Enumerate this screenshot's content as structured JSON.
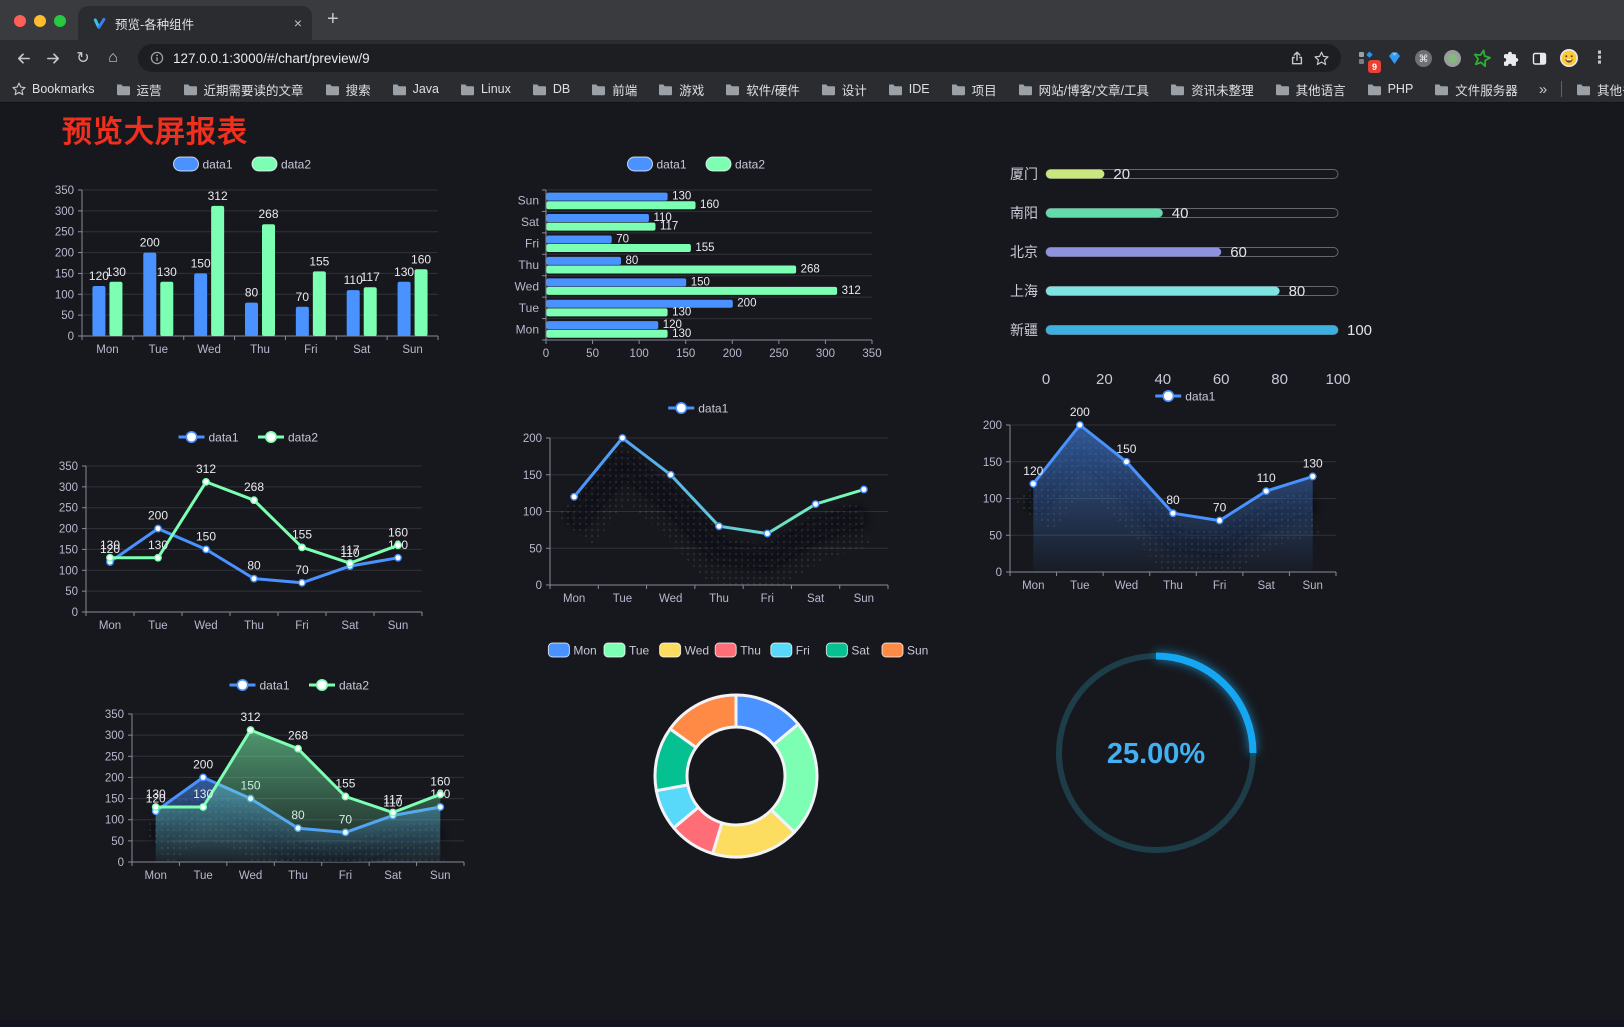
{
  "browser": {
    "tab_title": "预览-各种组件",
    "new_tab_label": "+",
    "tab_close_label": "×",
    "url": "127.0.0.1:3000/#/chart/preview/9",
    "extensions_badge": "9",
    "bookmarks_label": "Bookmarks",
    "bookmarks": [
      "运营",
      "近期需要读的文章",
      "搜索",
      "Java",
      "Linux",
      "DB",
      "前端",
      "游戏",
      "软件/硬件",
      "设计",
      "IDE",
      "项目",
      "网站/博客/文章/工具",
      "资讯未整理",
      "其他语言",
      "PHP",
      "文件服务器"
    ],
    "bookmarks_overflow": "»",
    "other_bookmarks": "其他书签"
  },
  "page": {
    "title": "预览大屏报表",
    "title_color": "#f0301f"
  },
  "chart_data": [
    {
      "id": "bar",
      "type": "bar",
      "categories": [
        "Mon",
        "Tue",
        "Wed",
        "Thu",
        "Fri",
        "Sat",
        "Sun"
      ],
      "series": [
        {
          "name": "data1",
          "color": "#4992ff",
          "values": [
            120,
            200,
            150,
            80,
            70,
            110,
            130
          ]
        },
        {
          "name": "data2",
          "color": "#7cffb2",
          "values": [
            130,
            130,
            312,
            268,
            155,
            117,
            160
          ]
        }
      ],
      "ylim": [
        0,
        350
      ],
      "yticks": [
        0,
        50,
        100,
        150,
        200,
        250,
        300,
        350
      ],
      "show_labels": true,
      "legend_position": "top"
    },
    {
      "id": "hbar",
      "type": "hbar",
      "categories": [
        "Sun",
        "Sat",
        "Fri",
        "Thu",
        "Wed",
        "Tue",
        "Mon"
      ],
      "series": [
        {
          "name": "data1",
          "color": "#4992ff",
          "values": [
            130,
            110,
            70,
            80,
            150,
            200,
            120
          ]
        },
        {
          "name": "data2",
          "color": "#7cffb2",
          "values": [
            160,
            117,
            155,
            268,
            312,
            130,
            130
          ]
        }
      ],
      "xlim": [
        0,
        350
      ],
      "xticks": [
        0,
        50,
        100,
        150,
        200,
        250,
        300,
        350
      ],
      "show_labels": true,
      "legend_position": "top"
    },
    {
      "id": "progress",
      "type": "progress",
      "rows": [
        {
          "label": "厦门",
          "value": 20,
          "color": "#c8e77e"
        },
        {
          "label": "南阳",
          "value": 40,
          "color": "#63dbab"
        },
        {
          "label": "北京",
          "value": 60,
          "color": "#8f92dd"
        },
        {
          "label": "上海",
          "value": 80,
          "color": "#7fe3e1"
        },
        {
          "label": "新疆",
          "value": 100,
          "color": "#3cb1e0"
        }
      ],
      "xlim": [
        0,
        100
      ],
      "xticks": [
        0,
        20,
        40,
        60,
        80,
        100
      ]
    },
    {
      "id": "line",
      "type": "line",
      "categories": [
        "Mon",
        "Tue",
        "Wed",
        "Thu",
        "Fri",
        "Sat",
        "Sun"
      ],
      "series": [
        {
          "name": "data1",
          "color": "#4992ff",
          "values": [
            120,
            200,
            150,
            80,
            70,
            110,
            130
          ]
        },
        {
          "name": "data2",
          "color": "#7cffb2",
          "values": [
            130,
            130,
            312,
            268,
            155,
            117,
            160
          ]
        }
      ],
      "ylim": [
        0,
        350
      ],
      "yticks": [
        0,
        50,
        100,
        150,
        200,
        250,
        300,
        350
      ],
      "show_labels": true,
      "legend_position": "top"
    },
    {
      "id": "line-gradient",
      "type": "line",
      "categories": [
        "Mon",
        "Tue",
        "Wed",
        "Thu",
        "Fri",
        "Sat",
        "Sun"
      ],
      "series": [
        {
          "name": "data1",
          "gradient": [
            "#4992ff",
            "#7cffb2"
          ],
          "values": [
            120,
            200,
            150,
            80,
            70,
            110,
            130
          ],
          "shadow": true
        }
      ],
      "ylim": [
        0,
        200
      ],
      "yticks": [
        0,
        50,
        100,
        150,
        200
      ],
      "show_labels": false,
      "legend_position": "top"
    },
    {
      "id": "line-area",
      "type": "line",
      "categories": [
        "Mon",
        "Tue",
        "Wed",
        "Thu",
        "Fri",
        "Sat",
        "Sun"
      ],
      "series": [
        {
          "name": "data1",
          "color": "#4992ff",
          "values": [
            120,
            200,
            150,
            80,
            70,
            110,
            130
          ],
          "area": true,
          "shadow": true
        }
      ],
      "ylim": [
        0,
        200
      ],
      "yticks": [
        0,
        50,
        100,
        150,
        200
      ],
      "show_labels": true,
      "legend_position": "top"
    },
    {
      "id": "line-area2",
      "type": "line",
      "categories": [
        "Mon",
        "Tue",
        "Wed",
        "Thu",
        "Fri",
        "Sat",
        "Sun"
      ],
      "series": [
        {
          "name": "data1",
          "color": "#4992ff",
          "values": [
            120,
            200,
            150,
            80,
            70,
            110,
            130
          ],
          "area": true,
          "shadow": true
        },
        {
          "name": "data2",
          "color": "#7cffb2",
          "values": [
            130,
            130,
            312,
            268,
            155,
            117,
            160
          ],
          "area": true
        }
      ],
      "ylim": [
        0,
        350
      ],
      "yticks": [
        0,
        50,
        100,
        150,
        200,
        250,
        300,
        350
      ],
      "show_labels": true,
      "legend_position": "top"
    },
    {
      "id": "donut",
      "type": "pie",
      "items": [
        {
          "label": "Mon",
          "value": 120,
          "color": "#4992ff"
        },
        {
          "label": "Tue",
          "value": 200,
          "color": "#7cffb2"
        },
        {
          "label": "Wed",
          "value": 150,
          "color": "#fddd60"
        },
        {
          "label": "Thu",
          "value": 80,
          "color": "#ff6e76"
        },
        {
          "label": "Fri",
          "value": 70,
          "color": "#58d9f9"
        },
        {
          "label": "Sat",
          "value": 110,
          "color": "#05c091"
        },
        {
          "label": "Sun",
          "value": 130,
          "color": "#ff8a45"
        }
      ],
      "legend_position": "top"
    },
    {
      "id": "gauge",
      "type": "gauge",
      "value": 25,
      "display": "25.00%",
      "color": "#18a7f2",
      "track": "#1d3e49",
      "text_color": "#41b1f4"
    }
  ]
}
